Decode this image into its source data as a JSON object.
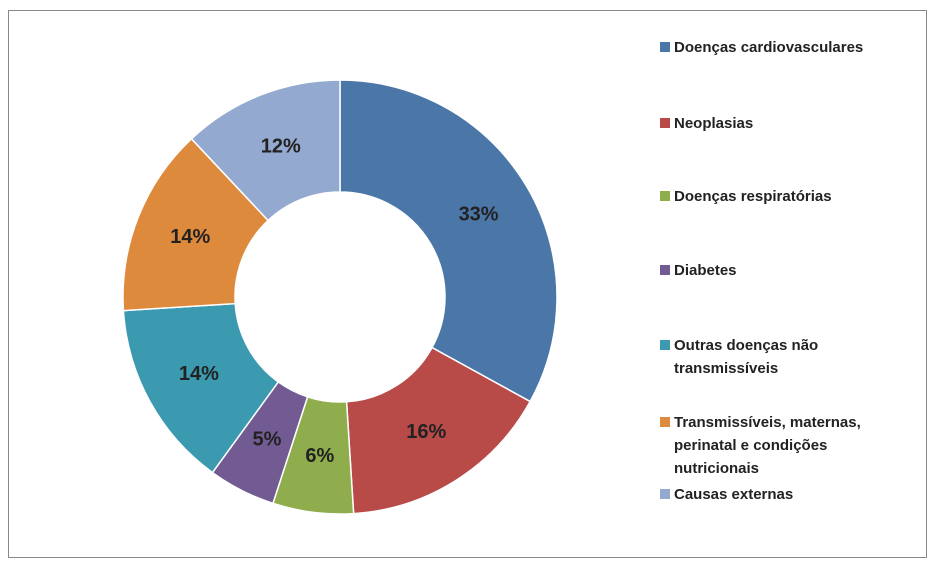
{
  "chart_data": {
    "type": "donut",
    "categories": [
      "Doenças cardiovasculares",
      "Neoplasias",
      "Doenças respiratórias",
      "Diabetes",
      "Outras doenças não transmissíveis",
      "Transmissíveis, maternas, perinatal e condições nutricionais",
      "Causas externas"
    ],
    "values": [
      33,
      16,
      6,
      5,
      14,
      14,
      12
    ],
    "value_labels": [
      "33%",
      "16%",
      "6%",
      "5%",
      "14%",
      "14%",
      "12%"
    ],
    "colors": [
      "#4a76a8",
      "#b84a48",
      "#8fad4d",
      "#725b92",
      "#3c9ab0",
      "#dd8a3c",
      "#93a9cf"
    ],
    "legend": "right"
  }
}
